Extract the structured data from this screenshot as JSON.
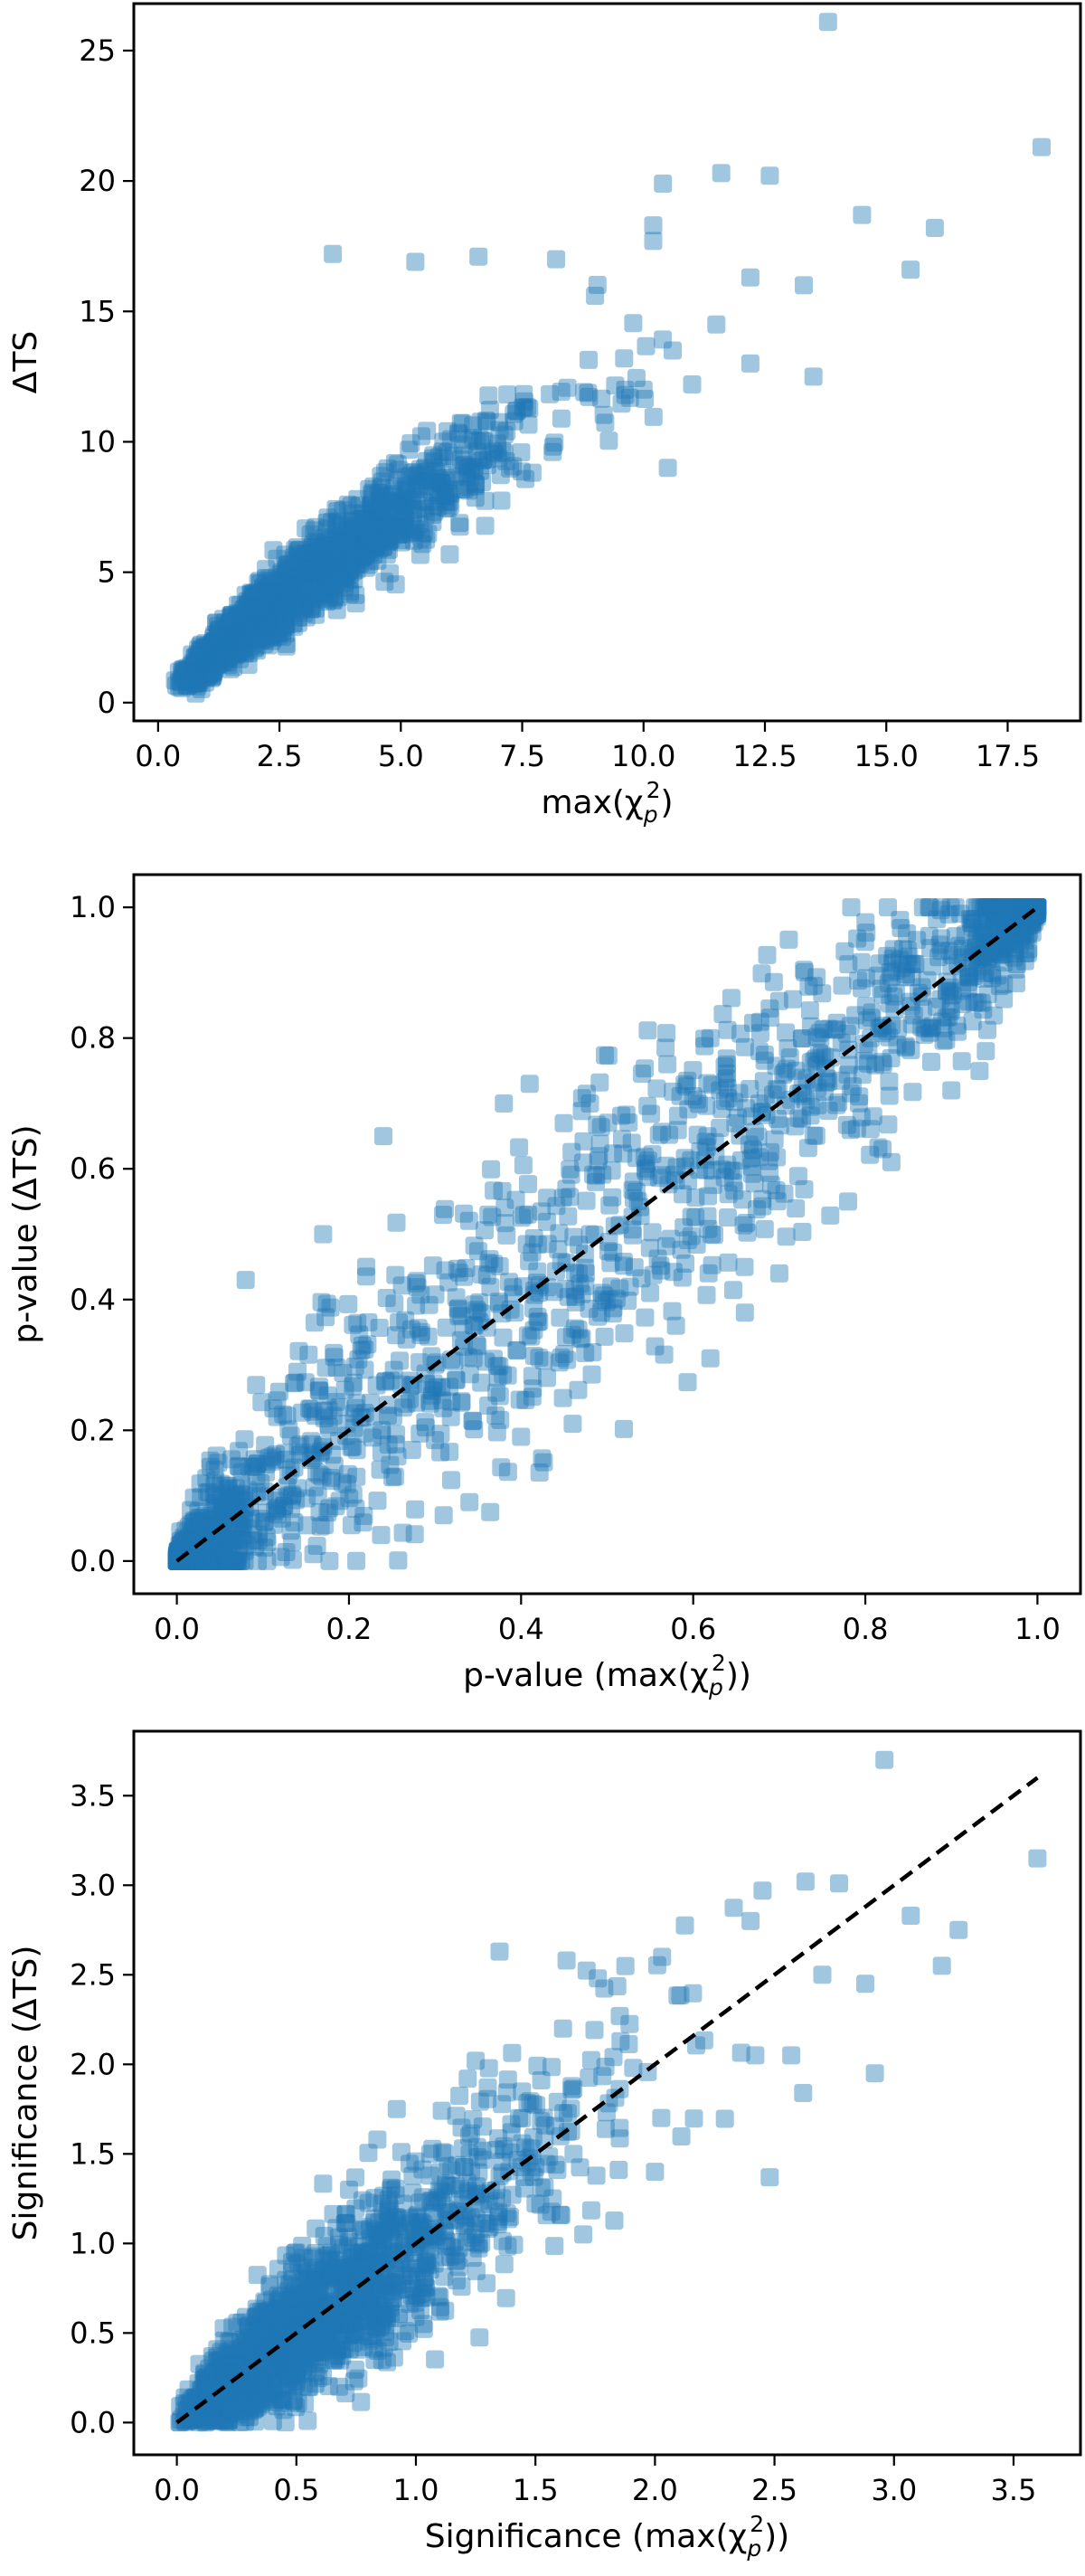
{
  "chart_data": [
    {
      "type": "scatter",
      "xlabel": {
        "main": "max(χ",
        "sub": "p",
        "sup": "2",
        "tail": ")"
      },
      "ylabel": "ΔTS",
      "xlim": [
        -0.5,
        19.0
      ],
      "ylim": [
        -0.7,
        26.8
      ],
      "xticks": [
        0.0,
        2.5,
        5.0,
        7.5,
        10.0,
        12.5,
        15.0,
        17.5
      ],
      "xtick_labels": [
        "0.0",
        "2.5",
        "5.0",
        "7.5",
        "10.0",
        "12.5",
        "15.0",
        "17.5"
      ],
      "yticks": [
        0,
        5,
        10,
        15,
        20,
        25
      ],
      "ytick_labels": [
        "0",
        "5",
        "10",
        "15",
        "20",
        "25"
      ],
      "reference_line": null,
      "color": "#1f77b4",
      "outliers": [
        [
          13.8,
          26.1
        ],
        [
          18.2,
          21.3
        ],
        [
          10.4,
          19.9
        ],
        [
          11.6,
          20.3
        ],
        [
          12.6,
          20.2
        ],
        [
          10.2,
          18.3
        ],
        [
          14.5,
          18.7
        ],
        [
          16.0,
          18.2
        ],
        [
          10.2,
          17.7
        ],
        [
          15.5,
          16.6
        ],
        [
          12.2,
          16.3
        ],
        [
          13.3,
          16.0
        ],
        [
          11.5,
          14.5
        ],
        [
          12.2,
          13.0
        ],
        [
          13.5,
          12.5
        ],
        [
          9.6,
          13.2
        ],
        [
          10.0,
          12.0
        ],
        [
          10.5,
          9.0
        ],
        [
          10.6,
          13.5
        ],
        [
          11.0,
          12.2
        ],
        [
          3.6,
          17.2
        ],
        [
          5.3,
          16.9
        ],
        [
          6.6,
          17.1
        ],
        [
          8.2,
          17.0
        ],
        [
          9.0,
          15.6
        ]
      ],
      "cloud": {
        "n": 1500,
        "seed": 11,
        "x_shape": 1.6,
        "x_scale": 1.7,
        "x_min": 0.32,
        "x_max": 10.5,
        "y_slope": 1.7,
        "y_curve": -0.045,
        "y_power": 0.0,
        "y_noise": 0.32
      }
    },
    {
      "type": "scatter",
      "xlabel": {
        "main": "p-value (max(χ",
        "sub": "p",
        "sup": "2",
        "tail": "))"
      },
      "ylabel": "p-value (ΔTS)",
      "xlim": [
        -0.05,
        1.05
      ],
      "ylim": [
        -0.05,
        1.05
      ],
      "xticks": [
        0.0,
        0.2,
        0.4,
        0.6,
        0.8,
        1.0
      ],
      "xtick_labels": [
        "0.0",
        "0.2",
        "0.4",
        "0.6",
        "0.8",
        "1.0"
      ],
      "yticks": [
        0.0,
        0.2,
        0.4,
        0.6,
        0.8,
        1.0
      ],
      "ytick_labels": [
        "0.0",
        "0.2",
        "0.4",
        "0.6",
        "0.8",
        "1.0"
      ],
      "reference_line": [
        [
          0.0,
          0.0
        ],
        [
          1.0,
          1.0
        ]
      ],
      "color": "#1f77b4",
      "outliers": [
        [
          0.08,
          0.43
        ],
        [
          0.17,
          0.5
        ],
        [
          0.24,
          0.65
        ],
        [
          0.22,
          0.45
        ],
        [
          0.41,
          0.73
        ],
        [
          0.48,
          0.7
        ],
        [
          0.38,
          0.7
        ],
        [
          0.57,
          0.76
        ],
        [
          0.62,
          0.8
        ],
        [
          0.74,
          0.88
        ],
        [
          0.86,
          0.95
        ],
        [
          0.9,
          0.91
        ],
        [
          0.34,
          0.09
        ],
        [
          0.31,
          0.07
        ],
        [
          0.4,
          0.19
        ],
        [
          0.46,
          0.21
        ],
        [
          0.58,
          0.36
        ],
        [
          0.62,
          0.31
        ],
        [
          0.7,
          0.44
        ],
        [
          0.78,
          0.55
        ],
        [
          0.82,
          0.63
        ],
        [
          0.9,
          0.72
        ],
        [
          0.94,
          0.78
        ],
        [
          0.66,
          0.38
        ],
        [
          0.55,
          0.41
        ]
      ],
      "cloud": {
        "n": 1600,
        "seed": 23,
        "p_mode": true
      }
    },
    {
      "type": "scatter",
      "xlabel": {
        "main": "Significance (max(χ",
        "sub": "p",
        "sup": "2",
        "tail": "))"
      },
      "ylabel": "Significance (ΔTS)",
      "xlim": [
        -0.18,
        3.78
      ],
      "ylim": [
        -0.18,
        3.86
      ],
      "xticks": [
        0.0,
        0.5,
        1.0,
        1.5,
        2.0,
        2.5,
        3.0,
        3.5
      ],
      "xtick_labels": [
        "0.0",
        "0.5",
        "1.0",
        "1.5",
        "2.0",
        "2.5",
        "3.0",
        "3.5"
      ],
      "yticks": [
        0.0,
        0.5,
        1.0,
        1.5,
        2.0,
        2.5,
        3.0,
        3.5
      ],
      "ytick_labels": [
        "0.0",
        "0.5",
        "1.0",
        "1.5",
        "2.0",
        "2.5",
        "3.0",
        "3.5"
      ],
      "reference_line": [
        [
          0.0,
          0.0
        ],
        [
          3.6,
          3.6
        ]
      ],
      "color": "#1f77b4",
      "outliers": [
        [
          2.96,
          3.7
        ],
        [
          3.6,
          3.15
        ],
        [
          2.45,
          2.97
        ],
        [
          2.63,
          3.02
        ],
        [
          2.77,
          3.01
        ],
        [
          3.07,
          2.83
        ],
        [
          3.27,
          2.75
        ],
        [
          3.2,
          2.55
        ],
        [
          2.88,
          2.45
        ],
        [
          2.92,
          1.95
        ],
        [
          2.62,
          1.84
        ],
        [
          2.7,
          2.5
        ],
        [
          2.48,
          1.37
        ],
        [
          1.35,
          2.63
        ],
        [
          1.63,
          2.58
        ],
        [
          2.03,
          2.6
        ],
        [
          2.4,
          2.8
        ],
        [
          2.42,
          2.05
        ],
        [
          2.57,
          2.05
        ],
        [
          0.92,
          1.75
        ],
        [
          1.25,
          2.02
        ],
        [
          0.72,
          1.3
        ],
        [
          1.7,
          1.05
        ],
        [
          2.0,
          1.4
        ],
        [
          1.1,
          0.7
        ]
      ],
      "cloud": {
        "n": 1500,
        "seed": 37,
        "x_shape": 1.6,
        "x_scale": 0.42,
        "x_min": 0.0,
        "x_max": 2.5,
        "y_slope": 1.0,
        "y_curve": 0.0,
        "y_power": 0.0,
        "y_noise": 0.27
      }
    }
  ]
}
